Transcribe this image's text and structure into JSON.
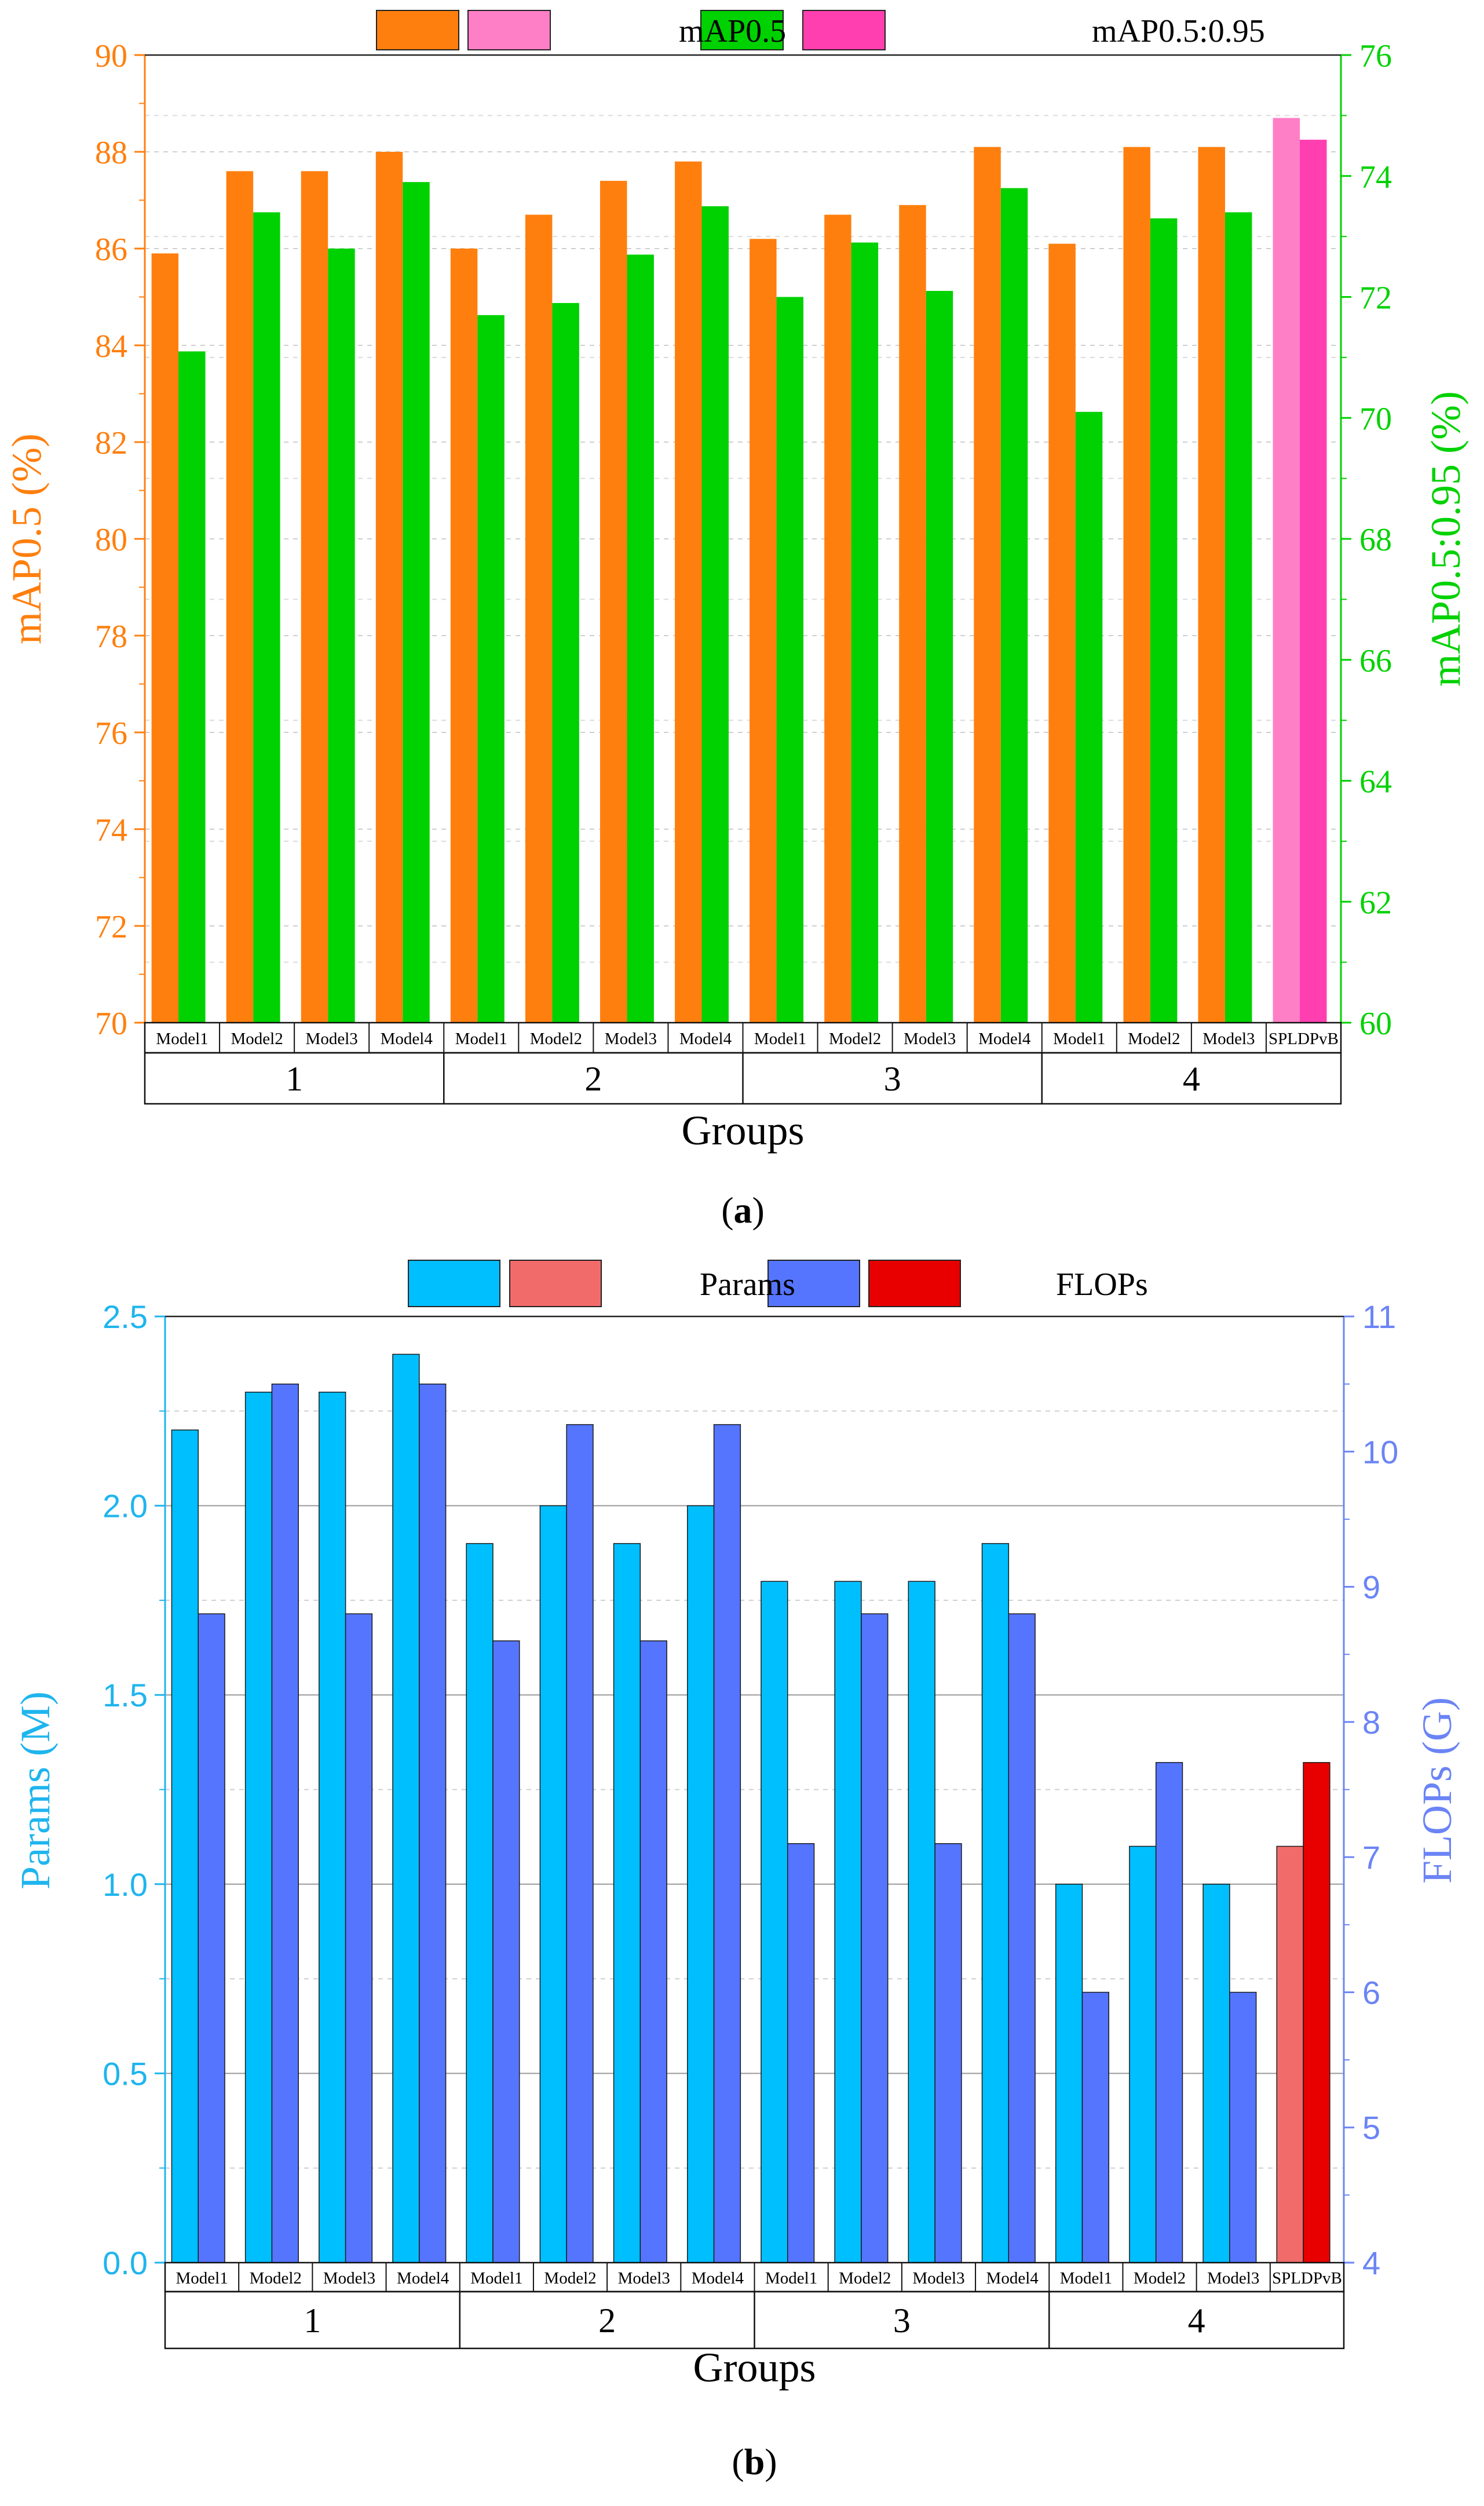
{
  "chart_data": [
    {
      "type": "bar",
      "panel_label": "(a)",
      "categories": [
        "Model1",
        "Model2",
        "Model3",
        "Model4",
        "Model1",
        "Model2",
        "Model3",
        "Model4",
        "Model1",
        "Model2",
        "Model3",
        "Model4",
        "Model1",
        "Model2",
        "Model3",
        "SPLDPvB"
      ],
      "groups": [
        "1",
        "2",
        "3",
        "4"
      ],
      "xlabel": "Groups",
      "ylabel": "mAP0.5 (%)",
      "ylabel_right": "mAP0.5:0.95 (%)",
      "ylim": [
        70,
        90
      ],
      "ylim_right": [
        60,
        76
      ],
      "yticks": [
        "70",
        "72",
        "74",
        "76",
        "78",
        "80",
        "82",
        "84",
        "86",
        "88",
        "90"
      ],
      "yticks_right": [
        "60",
        "62",
        "64",
        "66",
        "68",
        "70",
        "72",
        "74",
        "76"
      ],
      "legend": [
        "mAP0.5",
        "mAP0.5:0.95"
      ],
      "series": [
        {
          "name": "mAP0.5",
          "axis": "left",
          "color": "#ff7f0e",
          "highlight_color": "#ff7fc6",
          "values": [
            85.9,
            87.6,
            87.6,
            88.0,
            86.0,
            86.7,
            87.4,
            87.8,
            86.2,
            86.7,
            86.9,
            88.1,
            86.1,
            88.1,
            88.1,
            88.7
          ]
        },
        {
          "name": "mAP0.5:0.95",
          "axis": "right",
          "color": "#00d100",
          "highlight_color": "#ff3fb0",
          "values": [
            71.1,
            73.4,
            72.8,
            73.9,
            71.7,
            71.9,
            72.7,
            73.5,
            72.0,
            72.9,
            72.1,
            73.8,
            70.1,
            73.3,
            73.4,
            74.6
          ]
        }
      ],
      "colors": {
        "left_axis": "#ff7f0e",
        "right_axis": "#00d100"
      }
    },
    {
      "type": "bar",
      "panel_label": "(b)",
      "categories": [
        "Model1",
        "Model2",
        "Model3",
        "Model4",
        "Model1",
        "Model2",
        "Model3",
        "Model4",
        "Model1",
        "Model2",
        "Model3",
        "Model4",
        "Model1",
        "Model2",
        "Model3",
        "SPLDPvB"
      ],
      "groups": [
        "1",
        "2",
        "3",
        "4"
      ],
      "xlabel": "Groups",
      "ylabel": "Params (M)",
      "ylabel_right": "FLOPs (G)",
      "ylim": [
        0,
        2.5
      ],
      "ylim_right": [
        4,
        11
      ],
      "yticks": [
        "0.0",
        "0.5",
        "1.0",
        "1.5",
        "2.0",
        "2.5"
      ],
      "yticks_right": [
        "4",
        "5",
        "6",
        "7",
        "8",
        "9",
        "10",
        "11"
      ],
      "legend": [
        "Params",
        "FLOPs"
      ],
      "series": [
        {
          "name": "Params",
          "axis": "left",
          "color": "#00bfff",
          "highlight_color": "#f26b6b",
          "values": [
            2.2,
            2.3,
            2.3,
            2.4,
            1.9,
            2.0,
            1.9,
            2.0,
            1.8,
            1.8,
            1.8,
            1.9,
            1.0,
            1.1,
            1.0,
            1.1
          ]
        },
        {
          "name": "FLOPs",
          "axis": "right",
          "color": "#5575ff",
          "highlight_color": "#e80000",
          "values": [
            8.8,
            10.5,
            8.8,
            10.5,
            8.6,
            10.2,
            8.6,
            10.2,
            7.1,
            8.8,
            7.1,
            8.8,
            6.0,
            7.7,
            6.0,
            7.7
          ]
        }
      ],
      "colors": {
        "left_axis": "#1fb5ee",
        "right_axis": "#6b84f5"
      }
    }
  ]
}
